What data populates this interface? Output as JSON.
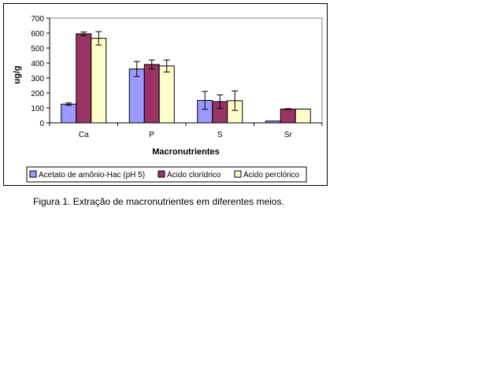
{
  "figure": {
    "caption": "Figura 1. Extração de macronutrientes em diferentes meios."
  },
  "chart_data": {
    "type": "bar",
    "title": "",
    "xlabel": "Macronutrientes",
    "ylabel": "ug/g",
    "categories": [
      "Ca",
      "P",
      "S",
      "Sr"
    ],
    "ylim": [
      0,
      700
    ],
    "yticks": [
      0,
      100,
      200,
      300,
      400,
      500,
      600,
      700
    ],
    "ytick_labels": [
      "0",
      "100",
      "200",
      "300",
      "400",
      "500",
      "600",
      "700"
    ],
    "grid": false,
    "legend_position": "bottom",
    "series": [
      {
        "name": "Acetato de amônio-Hac (pH 5)",
        "color": "#9999ff",
        "values": [
          125,
          360,
          150,
          12
        ],
        "errors": [
          8,
          50,
          60,
          0
        ]
      },
      {
        "name": "Ácido clorídrico",
        "color": "#993366",
        "values": [
          595,
          390,
          142,
          92
        ],
        "errors": [
          12,
          30,
          45,
          3
        ]
      },
      {
        "name": "Ácido perclórico",
        "color": "#ffffcc",
        "values": [
          565,
          380,
          148,
          92
        ],
        "errors": [
          45,
          40,
          65,
          0
        ]
      }
    ]
  }
}
